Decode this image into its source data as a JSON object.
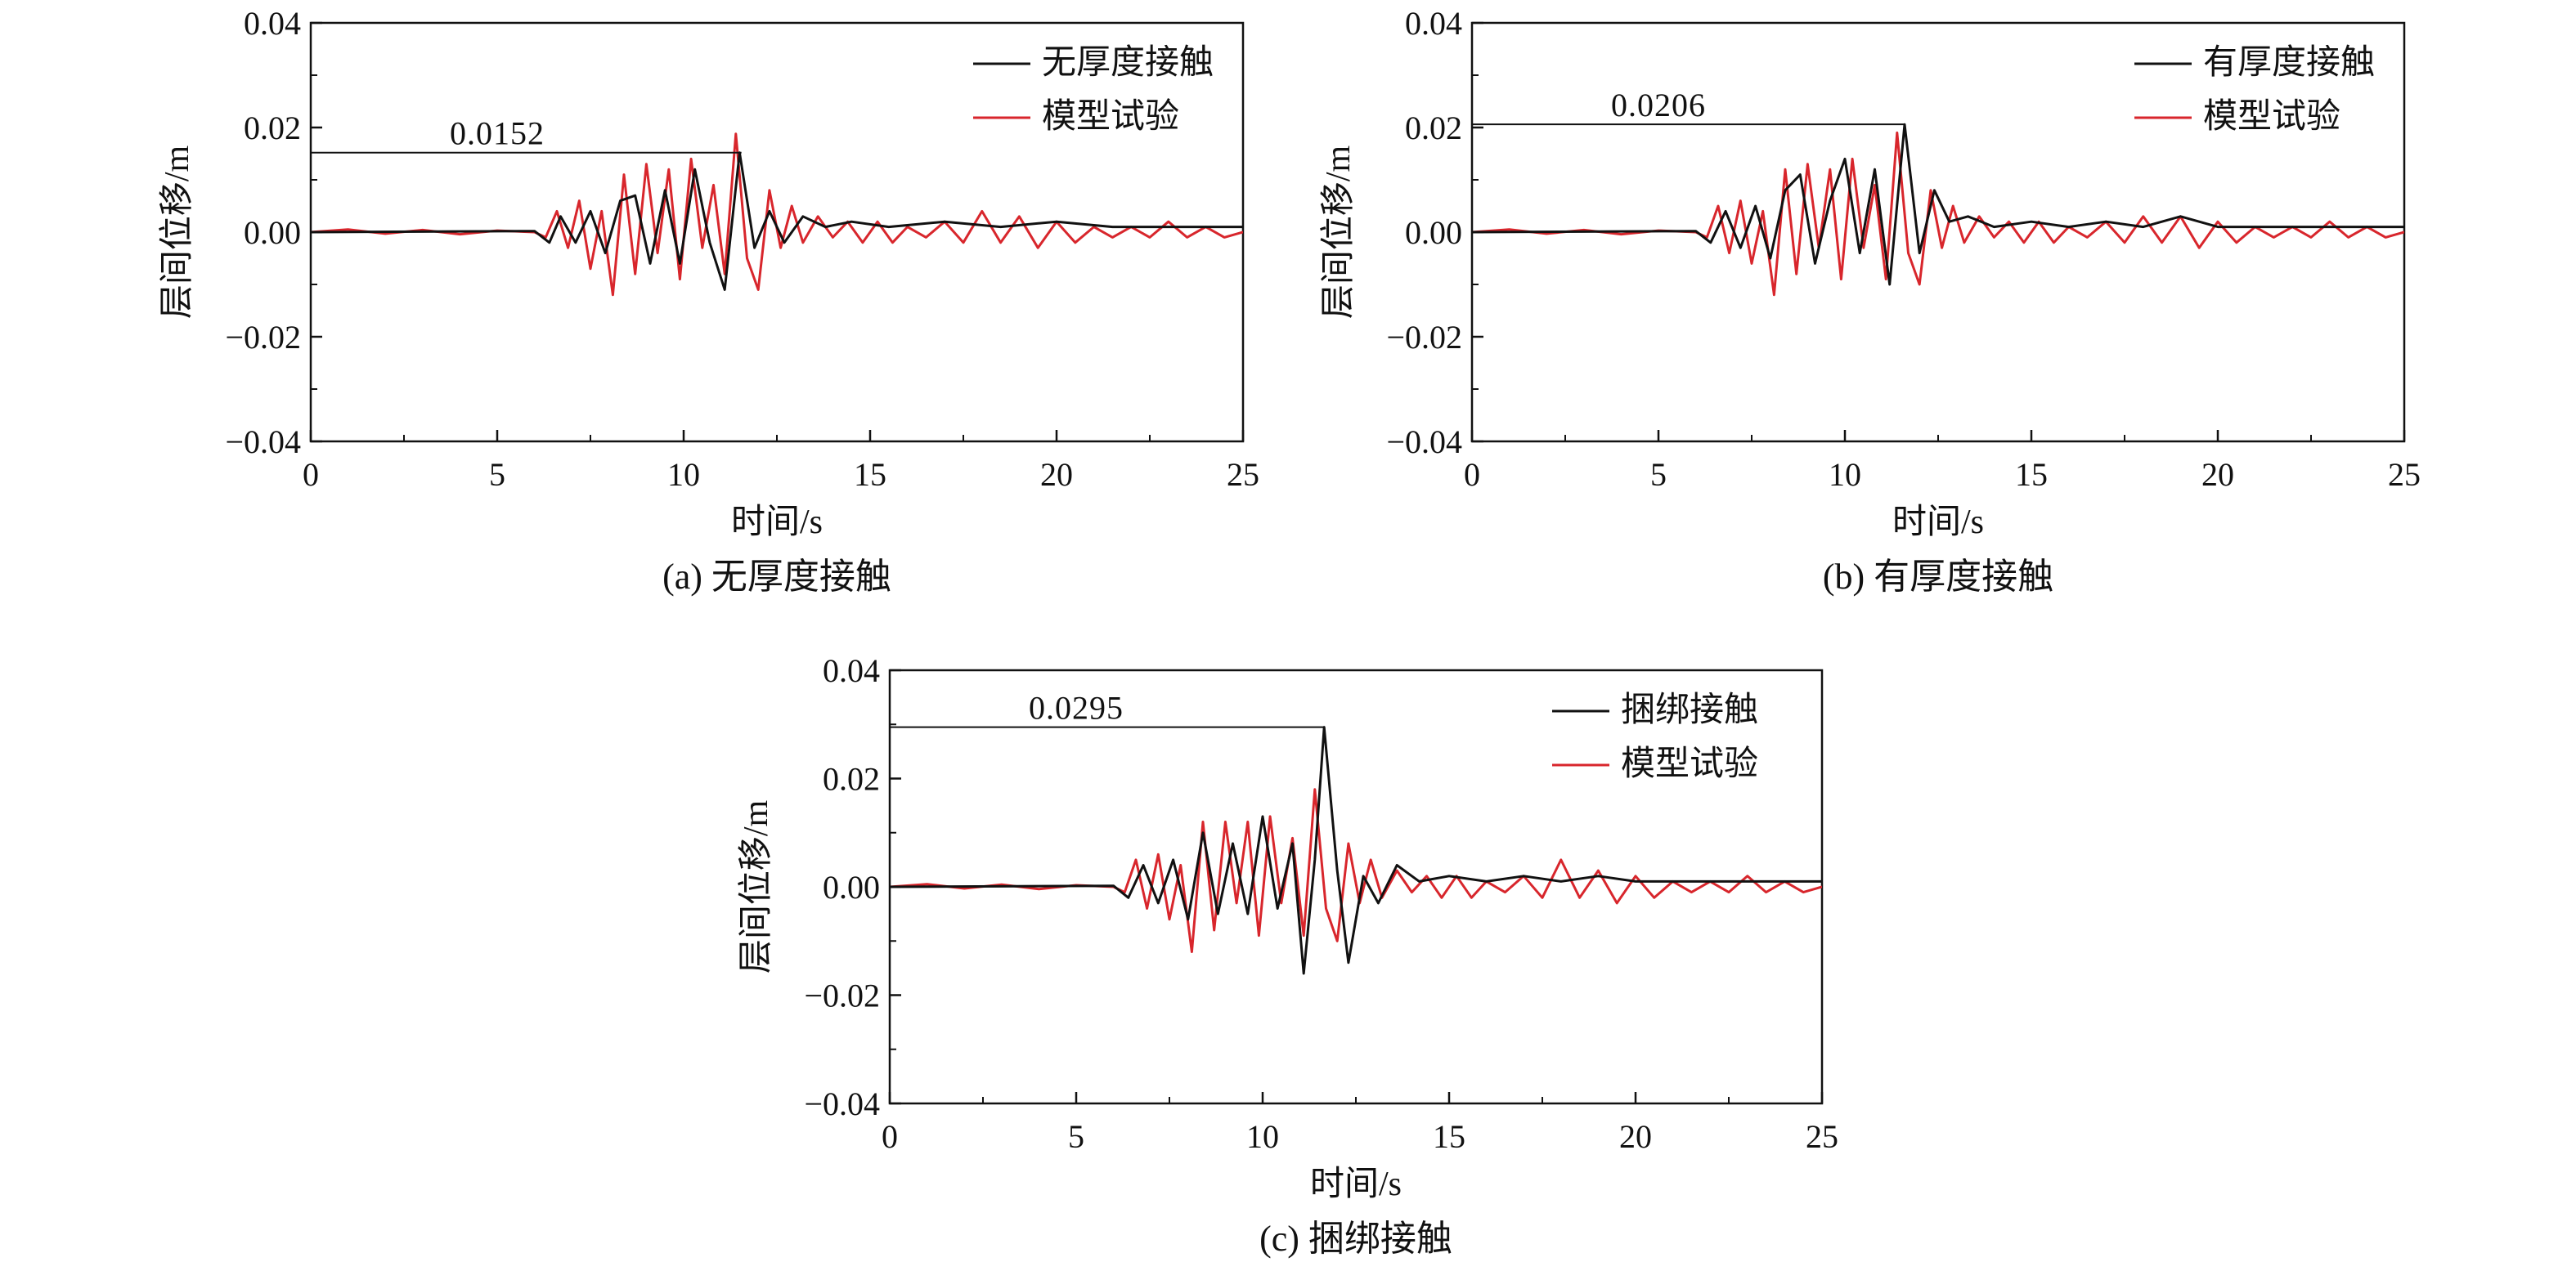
{
  "chart_data": [
    {
      "type": "line",
      "caption": "(a) 无厚度接触",
      "xlabel": "时间/s",
      "ylabel": "层间位移/m",
      "xlim": [
        0,
        25
      ],
      "ylim": [
        -0.04,
        0.04
      ],
      "xticks": [
        "0",
        "5",
        "10",
        "15",
        "20",
        "25"
      ],
      "yticks": [
        "0.04",
        "0.02",
        "0.00",
        "−0.02",
        "−0.04"
      ],
      "legend_position": "top-right",
      "peak": {
        "label": "0.0152",
        "value": 0.0152,
        "x": 11.55
      },
      "series": [
        {
          "name": "无厚度接触",
          "color": "#111111",
          "x": [
            0,
            6,
            6.4,
            6.7,
            7.1,
            7.5,
            7.9,
            8.3,
            8.7,
            9.1,
            9.5,
            9.9,
            10.3,
            10.7,
            11.1,
            11.5,
            11.9,
            12.3,
            12.7,
            13.2,
            13.8,
            14.5,
            15.5,
            17,
            18.5,
            20,
            21.5,
            23,
            25
          ],
          "y": [
            0,
            0.0002,
            -0.002,
            0.003,
            -0.002,
            0.004,
            -0.004,
            0.006,
            0.007,
            -0.006,
            0.008,
            -0.006,
            0.012,
            -0.002,
            -0.011,
            0.0152,
            -0.003,
            0.004,
            -0.002,
            0.003,
            0.001,
            0.002,
            0.001,
            0.002,
            0.001,
            0.002,
            0.001,
            0.001,
            0.001
          ]
        },
        {
          "name": "模型试验",
          "color": "#d8262c",
          "x": [
            0,
            1,
            2,
            3,
            4,
            5,
            6,
            6.3,
            6.6,
            6.9,
            7.2,
            7.5,
            7.8,
            8.1,
            8.4,
            8.7,
            9.0,
            9.3,
            9.6,
            9.9,
            10.2,
            10.5,
            10.8,
            11.1,
            11.4,
            11.7,
            12.0,
            12.3,
            12.6,
            12.9,
            13.2,
            13.6,
            14.0,
            14.4,
            14.8,
            15.2,
            15.6,
            16.0,
            16.5,
            17.0,
            17.5,
            18.0,
            18.5,
            19.0,
            19.5,
            20.0,
            20.5,
            21.0,
            21.5,
            22.0,
            22.5,
            23.0,
            23.5,
            24.0,
            24.5,
            25
          ],
          "y": [
            0,
            0.0005,
            -0.0003,
            0.0004,
            -0.0004,
            0.0003,
            0,
            -0.001,
            0.004,
            -0.003,
            0.006,
            -0.007,
            0.004,
            -0.012,
            0.011,
            -0.008,
            0.013,
            -0.004,
            0.012,
            -0.009,
            0.014,
            -0.003,
            0.009,
            -0.008,
            0.0188,
            -0.005,
            -0.011,
            0.008,
            -0.003,
            0.005,
            -0.002,
            0.003,
            -0.001,
            0.002,
            -0.002,
            0.002,
            -0.002,
            0.001,
            -0.001,
            0.002,
            -0.002,
            0.004,
            -0.002,
            0.003,
            -0.003,
            0.002,
            -0.002,
            0.001,
            -0.001,
            0.001,
            -0.001,
            0.002,
            -0.001,
            0.001,
            -0.001,
            0
          ]
        }
      ]
    },
    {
      "type": "line",
      "caption": "(b) 有厚度接触",
      "xlabel": "时间/s",
      "ylabel": "层间位移/m",
      "xlim": [
        0,
        25
      ],
      "ylim": [
        -0.04,
        0.04
      ],
      "xticks": [
        "0",
        "5",
        "10",
        "15",
        "20",
        "25"
      ],
      "yticks": [
        "0.04",
        "0.02",
        "0.00",
        "−0.02",
        "−0.04"
      ],
      "legend_position": "top-right",
      "peak": {
        "label": "0.0206",
        "value": 0.0206,
        "x": 11.6
      },
      "series": [
        {
          "name": "有厚度接触",
          "color": "#111111",
          "x": [
            0,
            6,
            6.4,
            6.8,
            7.2,
            7.6,
            8.0,
            8.4,
            8.8,
            9.2,
            9.6,
            10.0,
            10.4,
            10.8,
            11.2,
            11.6,
            12.0,
            12.4,
            12.8,
            13.3,
            14.0,
            15.0,
            16.0,
            17.0,
            18.0,
            19.0,
            20.0,
            22.0,
            25
          ],
          "y": [
            0,
            0.0002,
            -0.002,
            0.004,
            -0.003,
            0.005,
            -0.005,
            0.008,
            0.011,
            -0.006,
            0.006,
            0.014,
            -0.004,
            0.012,
            -0.01,
            0.0206,
            -0.004,
            0.008,
            0.002,
            0.003,
            0.001,
            0.002,
            0.001,
            0.002,
            0.001,
            0.003,
            0.001,
            0.001,
            0.001
          ]
        },
        {
          "name": "模型试验",
          "color": "#d8262c",
          "x": [
            0,
            1,
            2,
            3,
            4,
            5,
            6,
            6.3,
            6.6,
            6.9,
            7.2,
            7.5,
            7.8,
            8.1,
            8.4,
            8.7,
            9.0,
            9.3,
            9.6,
            9.9,
            10.2,
            10.5,
            10.8,
            11.1,
            11.4,
            11.7,
            12.0,
            12.3,
            12.6,
            12.9,
            13.2,
            13.6,
            14.0,
            14.4,
            14.8,
            15.2,
            15.6,
            16.0,
            16.5,
            17.0,
            17.5,
            18.0,
            18.5,
            19.0,
            19.5,
            20.0,
            20.5,
            21.0,
            21.5,
            22.0,
            22.5,
            23.0,
            23.5,
            24.0,
            24.5,
            25
          ],
          "y": [
            0,
            0.0005,
            -0.0003,
            0.0004,
            -0.0004,
            0.0003,
            0,
            -0.001,
            0.005,
            -0.004,
            0.006,
            -0.006,
            0.004,
            -0.012,
            0.012,
            -0.008,
            0.013,
            -0.003,
            0.012,
            -0.009,
            0.014,
            -0.003,
            0.009,
            -0.009,
            0.019,
            -0.004,
            -0.01,
            0.008,
            -0.003,
            0.005,
            -0.002,
            0.003,
            -0.001,
            0.002,
            -0.002,
            0.002,
            -0.002,
            0.001,
            -0.001,
            0.002,
            -0.002,
            0.003,
            -0.002,
            0.003,
            -0.003,
            0.002,
            -0.002,
            0.001,
            -0.001,
            0.001,
            -0.001,
            0.002,
            -0.001,
            0.001,
            -0.001,
            0
          ]
        }
      ]
    },
    {
      "type": "line",
      "caption": "(c) 捆绑接触",
      "xlabel": "时间/s",
      "ylabel": "层间位移/m",
      "xlim": [
        0,
        25
      ],
      "ylim": [
        -0.04,
        0.04
      ],
      "xticks": [
        "0",
        "5",
        "10",
        "15",
        "20",
        "25"
      ],
      "yticks": [
        "0.04",
        "0.02",
        "0.00",
        "−0.02",
        "−0.04"
      ],
      "legend_position": "top-right",
      "peak": {
        "label": "0.0295",
        "value": 0.0295,
        "x": 11.65
      },
      "series": [
        {
          "name": "捆绑接触",
          "color": "#111111",
          "x": [
            0,
            6,
            6.4,
            6.8,
            7.2,
            7.6,
            8.0,
            8.4,
            8.8,
            9.2,
            9.6,
            10.0,
            10.4,
            10.8,
            11.1,
            11.4,
            11.65,
            12.0,
            12.3,
            12.7,
            13.1,
            13.6,
            14.2,
            15.0,
            16.0,
            17.0,
            18.0,
            19.0,
            20.0,
            22.0,
            25
          ],
          "y": [
            0,
            0.0002,
            -0.002,
            0.004,
            -0.003,
            0.005,
            -0.006,
            0.01,
            -0.005,
            0.008,
            -0.005,
            0.013,
            -0.004,
            0.008,
            -0.016,
            0.005,
            0.0295,
            0.003,
            -0.014,
            0.002,
            -0.003,
            0.004,
            0.001,
            0.002,
            0.001,
            0.002,
            0.001,
            0.002,
            0.001,
            0.001,
            0.001
          ]
        },
        {
          "name": "模型试验",
          "color": "#d8262c",
          "x": [
            0,
            1,
            2,
            3,
            4,
            5,
            6,
            6.3,
            6.6,
            6.9,
            7.2,
            7.5,
            7.8,
            8.1,
            8.4,
            8.7,
            9.0,
            9.3,
            9.6,
            9.9,
            10.2,
            10.5,
            10.8,
            11.1,
            11.4,
            11.7,
            12.0,
            12.3,
            12.6,
            12.9,
            13.2,
            13.6,
            14.0,
            14.4,
            14.8,
            15.2,
            15.6,
            16.0,
            16.5,
            17.0,
            17.5,
            18.0,
            18.5,
            19.0,
            19.5,
            20.0,
            20.5,
            21.0,
            21.5,
            22.0,
            22.5,
            23.0,
            23.5,
            24.0,
            24.5,
            25
          ],
          "y": [
            0,
            0.0005,
            -0.0003,
            0.0004,
            -0.0004,
            0.0003,
            0,
            -0.001,
            0.005,
            -0.004,
            0.006,
            -0.006,
            0.004,
            -0.012,
            0.012,
            -0.008,
            0.012,
            -0.003,
            0.012,
            -0.009,
            0.013,
            -0.003,
            0.009,
            -0.009,
            0.018,
            -0.004,
            -0.01,
            0.008,
            -0.003,
            0.005,
            -0.002,
            0.003,
            -0.001,
            0.002,
            -0.002,
            0.002,
            -0.002,
            0.001,
            -0.001,
            0.002,
            -0.002,
            0.005,
            -0.002,
            0.003,
            -0.003,
            0.002,
            -0.002,
            0.001,
            -0.001,
            0.001,
            -0.001,
            0.002,
            -0.001,
            0.001,
            -0.001,
            0
          ]
        }
      ]
    }
  ]
}
